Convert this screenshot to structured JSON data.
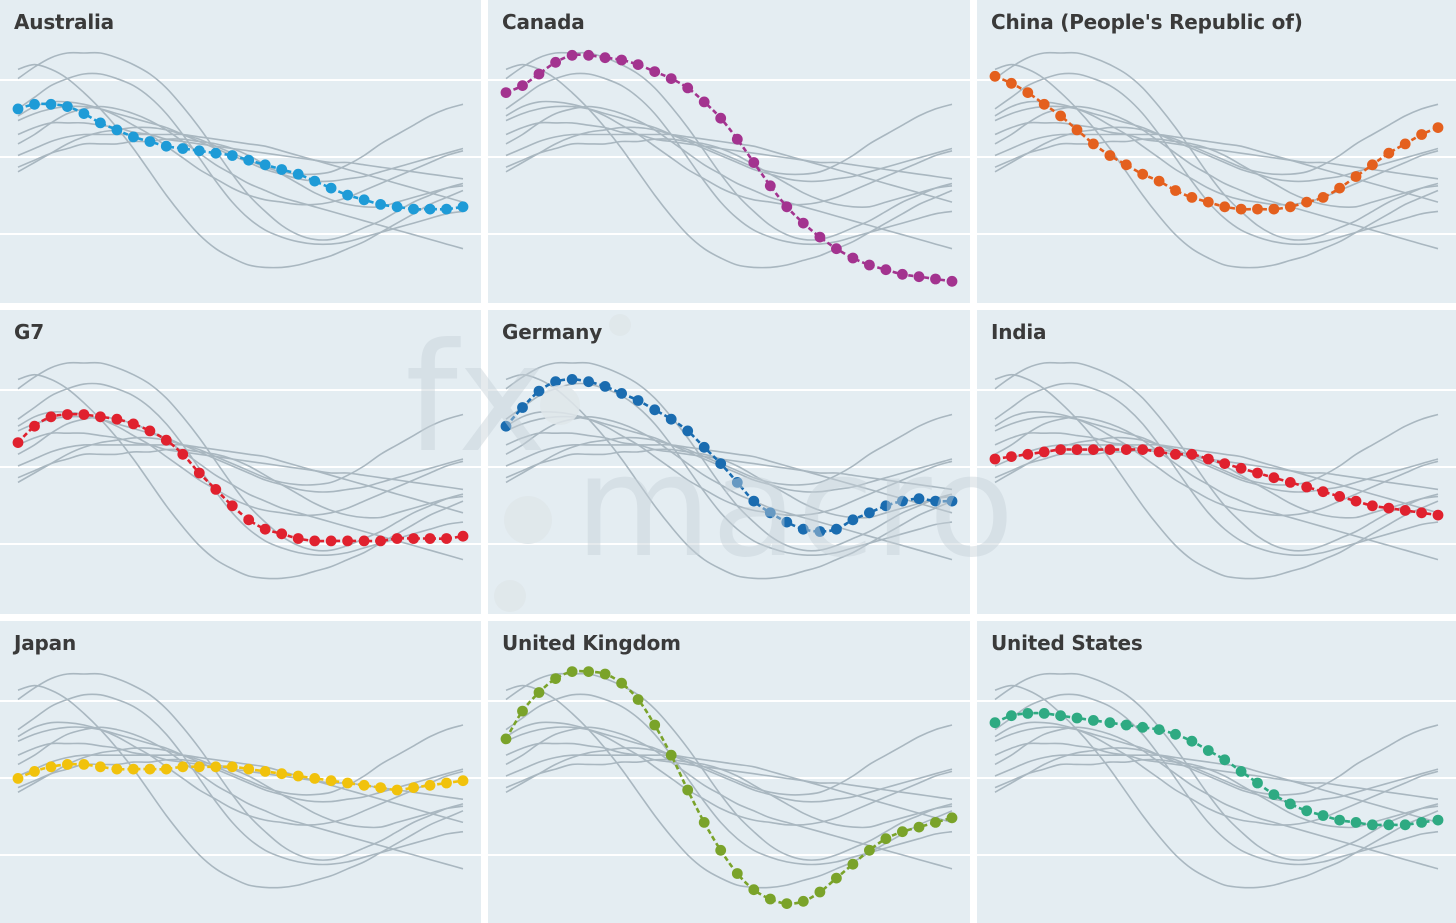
{
  "chart_data": {
    "type": "line",
    "layout": "small-multiples 3x3",
    "x_count": 28,
    "ylim": [
      0,
      100
    ],
    "grid": true,
    "background_series_color": "#a9b7c0",
    "panels": [
      {
        "title": "Australia",
        "color": "#1e9bd7",
        "values": [
          73,
          75,
          75,
          74,
          71,
          67,
          64,
          61,
          59,
          57,
          56,
          55,
          54,
          53,
          51,
          49,
          47,
          45,
          42,
          39,
          36,
          34,
          32,
          31,
          30,
          30,
          30,
          31
        ]
      },
      {
        "title": "Canada",
        "color": "#a3338f",
        "values": [
          80,
          83,
          88,
          93,
          96,
          96,
          95,
          94,
          92,
          89,
          86,
          82,
          76,
          69,
          60,
          50,
          40,
          31,
          24,
          18,
          13,
          9,
          6,
          4,
          2,
          1,
          0,
          -1
        ]
      },
      {
        "title": "China (People's Republic of)",
        "color": "#e4601e",
        "values": [
          87,
          84,
          80,
          75,
          70,
          64,
          58,
          53,
          49,
          45,
          42,
          38,
          35,
          33,
          31,
          30,
          30,
          30,
          31,
          33,
          35,
          39,
          44,
          49,
          54,
          58,
          62,
          65
        ]
      },
      {
        "title": "G7",
        "color": "#e0212e",
        "values": [
          63,
          70,
          74,
          75,
          75,
          74,
          73,
          71,
          68,
          64,
          58,
          50,
          43,
          36,
          30,
          26,
          24,
          22,
          21,
          21,
          21,
          21,
          21,
          22,
          22,
          22,
          22,
          23
        ]
      },
      {
        "title": "Germany",
        "color": "#1a6cb0",
        "values": [
          70,
          78,
          85,
          89,
          90,
          89,
          87,
          84,
          81,
          77,
          73,
          68,
          61,
          54,
          46,
          38,
          33,
          29,
          26,
          25,
          26,
          30,
          33,
          36,
          38,
          39,
          38,
          38
        ]
      },
      {
        "title": "India",
        "color": "#e0212e",
        "values": [
          56,
          57,
          58,
          59,
          60,
          60,
          60,
          60,
          60,
          60,
          59,
          58,
          58,
          56,
          54,
          52,
          50,
          48,
          46,
          44,
          42,
          40,
          38,
          36,
          35,
          34,
          33,
          32
        ]
      },
      {
        "title": "Japan",
        "color": "#f1c20c",
        "values": [
          52,
          55,
          57,
          58,
          58,
          57,
          56,
          56,
          56,
          56,
          57,
          57,
          57,
          57,
          56,
          55,
          54,
          53,
          52,
          51,
          50,
          49,
          48,
          47,
          48,
          49,
          50,
          51
        ]
      },
      {
        "title": "United Kingdom",
        "color": "#7aa32a",
        "values": [
          69,
          81,
          89,
          95,
          98,
          98,
          97,
          93,
          86,
          75,
          62,
          47,
          33,
          21,
          11,
          4,
          0,
          -2,
          -1,
          3,
          9,
          15,
          21,
          26,
          29,
          31,
          33,
          35
        ]
      },
      {
        "title": "United States",
        "color": "#2eaa82",
        "values": [
          76,
          79,
          80,
          80,
          79,
          78,
          77,
          76,
          75,
          74,
          73,
          71,
          68,
          64,
          60,
          55,
          50,
          45,
          41,
          38,
          36,
          34,
          33,
          32,
          32,
          32,
          33,
          34
        ]
      }
    ],
    "background_series": [
      [
        90,
        92,
        90,
        86,
        80,
        73,
        65,
        56,
        46,
        36,
        27,
        19,
        13,
        9,
        6,
        5,
        5,
        6,
        8,
        10,
        13,
        16,
        20,
        24,
        28,
        32,
        35,
        38
      ],
      [
        86,
        91,
        95,
        97,
        97,
        97,
        95,
        92,
        88,
        82,
        74,
        65,
        55,
        45,
        36,
        29,
        23,
        19,
        17,
        17,
        19,
        22,
        25,
        29,
        33,
        36,
        39,
        41
      ],
      [
        73,
        78,
        83,
        86,
        88,
        88,
        86,
        83,
        78,
        71,
        62,
        52,
        42,
        33,
        26,
        21,
        18,
        16,
        15,
        15,
        16,
        18,
        20,
        22,
        24,
        26,
        28,
        29
      ],
      [
        58,
        62,
        67,
        71,
        73,
        74,
        73,
        71,
        68,
        64,
        59,
        54,
        49,
        45,
        41,
        38,
        35,
        33,
        31,
        29,
        27,
        25,
        23,
        21,
        19,
        17,
        15,
        13
      ],
      [
        68,
        71,
        73,
        74,
        74,
        73,
        71,
        69,
        67,
        65,
        62,
        59,
        56,
        53,
        50,
        47,
        45,
        43,
        42,
        42,
        43,
        44,
        46,
        48,
        50,
        52,
        54,
        56
      ],
      [
        62,
        65,
        67,
        67,
        67,
        66,
        65,
        63,
        62,
        60,
        59,
        58,
        57,
        56,
        55,
        54,
        53,
        52,
        51,
        50,
        50,
        49,
        48,
        47,
        46,
        45,
        44,
        43
      ],
      [
        53,
        56,
        59,
        61,
        62,
        62,
        62,
        62,
        62,
        62,
        62,
        61,
        60,
        59,
        58,
        57,
        55,
        53,
        51,
        49,
        47,
        45,
        43,
        41,
        39,
        37,
        35,
        33
      ],
      [
        48,
        51,
        54,
        56,
        58,
        58,
        58,
        59,
        59,
        60,
        60,
        59,
        58,
        56,
        53,
        49,
        45,
        41,
        37,
        34,
        32,
        31,
        31,
        33,
        35,
        37,
        39,
        40
      ],
      [
        46,
        50,
        54,
        58,
        61,
        63,
        64,
        65,
        65,
        64,
        62,
        60,
        57,
        54,
        51,
        48,
        46,
        45,
        45,
        46,
        49,
        53,
        58,
        62,
        66,
        70,
        73,
        75
      ],
      [
        70,
        74,
        76,
        76,
        75,
        73,
        70,
        66,
        62,
        57,
        52,
        47,
        43,
        39,
        36,
        34,
        33,
        32,
        32,
        33,
        35,
        38,
        41,
        44,
        47,
        50,
        53,
        55
      ]
    ]
  },
  "watermark": {
    "text": "fxmacro"
  }
}
